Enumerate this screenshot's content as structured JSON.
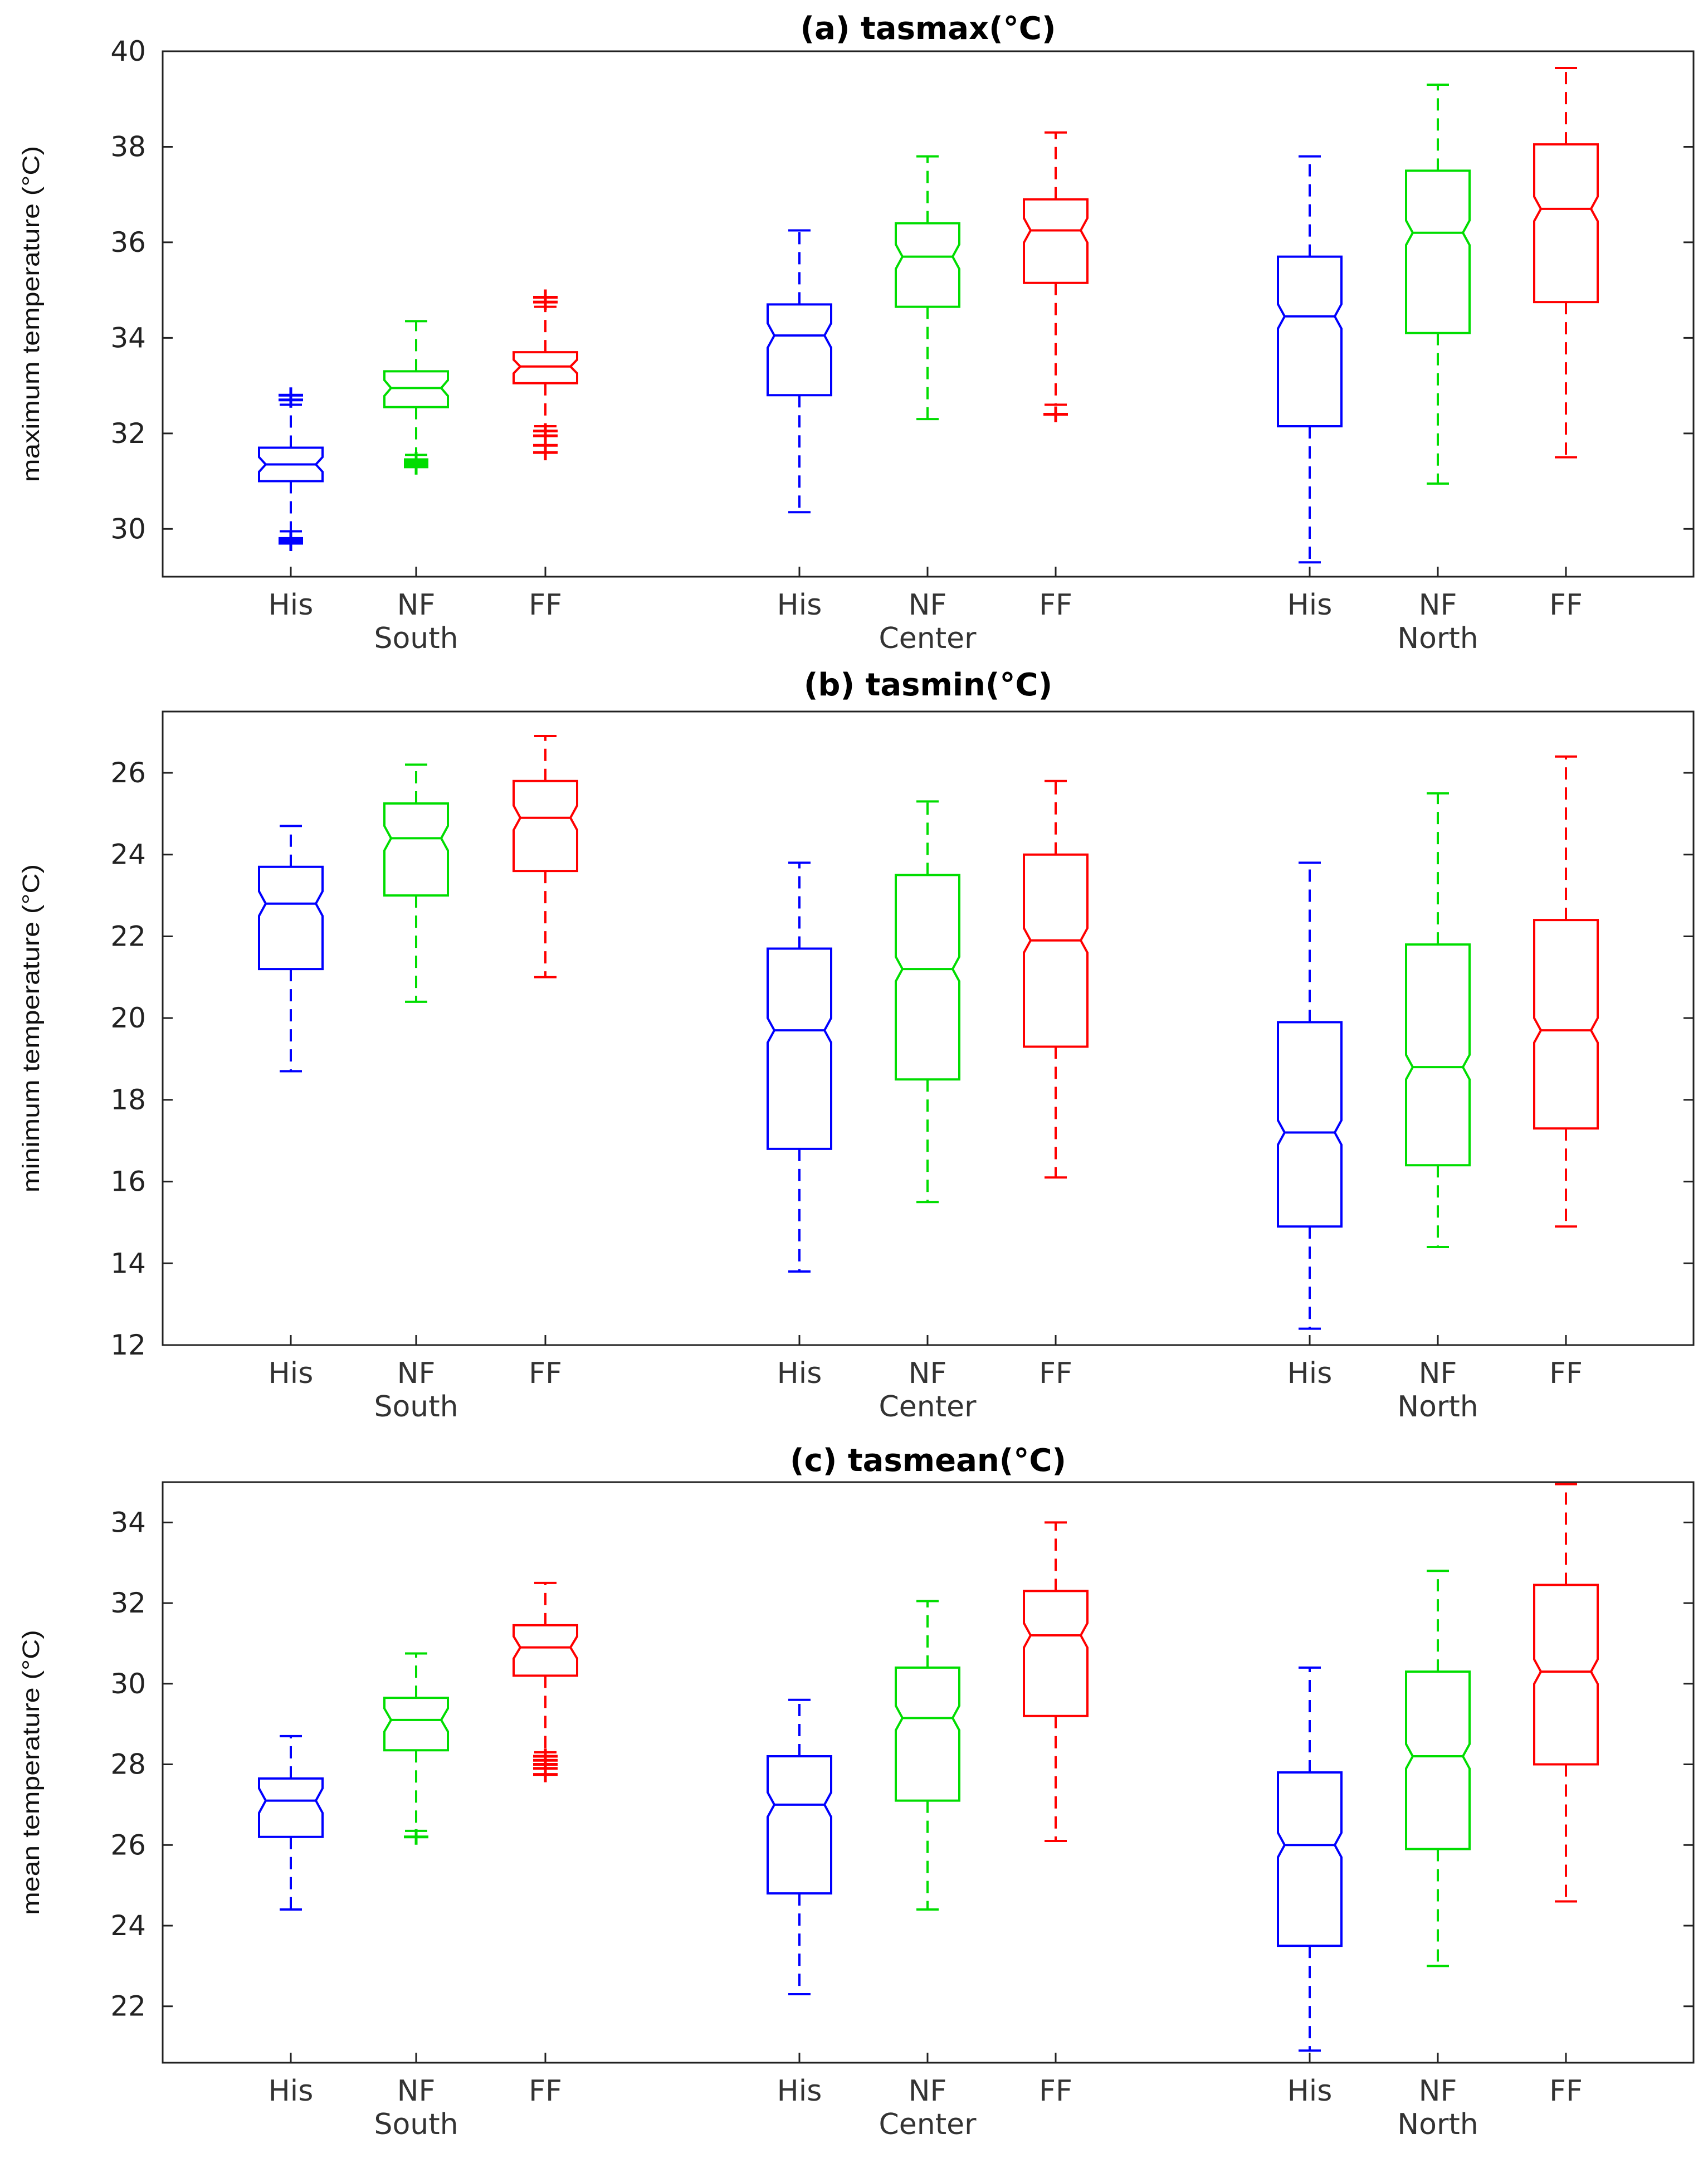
{
  "chart_data": [
    {
      "type": "box",
      "title": "(a) tasmax(°C)",
      "ylabel": "maximum temperature (°C)",
      "ylim": [
        29.0,
        40.0
      ],
      "yticks": [
        30,
        32,
        34,
        36,
        38,
        40
      ],
      "groups": [
        "South",
        "Center",
        "North"
      ],
      "categories": [
        "His",
        "NF",
        "FF"
      ],
      "series_colors": {
        "His": "#0000ff",
        "NF": "#00dd00",
        "FF": "#ff0000"
      },
      "boxes": [
        {
          "group": "South",
          "cat": "His",
          "min": 29.95,
          "q1": 31.0,
          "median": 31.35,
          "q3": 31.7,
          "max": 32.6,
          "outliers": [
            29.7,
            29.75,
            29.8,
            32.7,
            32.8
          ]
        },
        {
          "group": "South",
          "cat": "NF",
          "min": 31.55,
          "q1": 32.55,
          "median": 32.95,
          "q3": 33.3,
          "max": 34.35,
          "outliers": [
            31.3,
            31.35,
            31.4,
            31.45
          ]
        },
        {
          "group": "South",
          "cat": "FF",
          "min": 32.15,
          "q1": 33.05,
          "median": 33.4,
          "q3": 33.7,
          "max": 34.65,
          "outliers": [
            31.6,
            31.75,
            31.95,
            32.05,
            34.75,
            34.85
          ]
        },
        {
          "group": "Center",
          "cat": "His",
          "min": 30.35,
          "q1": 32.8,
          "median": 34.05,
          "q3": 34.7,
          "max": 36.25,
          "outliers": []
        },
        {
          "group": "Center",
          "cat": "NF",
          "min": 32.3,
          "q1": 34.65,
          "median": 35.7,
          "q3": 36.4,
          "max": 37.8,
          "outliers": []
        },
        {
          "group": "Center",
          "cat": "FF",
          "min": 32.6,
          "q1": 35.15,
          "median": 36.25,
          "q3": 36.9,
          "max": 38.3,
          "outliers": [
            32.4
          ]
        },
        {
          "group": "North",
          "cat": "His",
          "min": 29.3,
          "q1": 32.15,
          "median": 34.45,
          "q3": 35.7,
          "max": 37.8,
          "outliers": []
        },
        {
          "group": "North",
          "cat": "NF",
          "min": 30.95,
          "q1": 34.1,
          "median": 36.2,
          "q3": 37.5,
          "max": 39.3,
          "outliers": []
        },
        {
          "group": "North",
          "cat": "FF",
          "min": 31.5,
          "q1": 34.75,
          "median": 36.7,
          "q3": 38.05,
          "max": 39.65,
          "outliers": []
        }
      ]
    },
    {
      "type": "box",
      "title": "(b) tasmin(°C)",
      "ylabel": "minimum temperature (°C)",
      "ylim": [
        12.0,
        27.5
      ],
      "yticks": [
        12,
        14,
        16,
        18,
        20,
        22,
        24,
        26
      ],
      "groups": [
        "South",
        "Center",
        "North"
      ],
      "categories": [
        "His",
        "NF",
        "FF"
      ],
      "series_colors": {
        "His": "#0000ff",
        "NF": "#00dd00",
        "FF": "#ff0000"
      },
      "boxes": [
        {
          "group": "South",
          "cat": "His",
          "min": 18.7,
          "q1": 21.2,
          "median": 22.8,
          "q3": 23.7,
          "max": 24.7,
          "outliers": []
        },
        {
          "group": "South",
          "cat": "NF",
          "min": 20.4,
          "q1": 23.0,
          "median": 24.4,
          "q3": 25.25,
          "max": 26.2,
          "outliers": []
        },
        {
          "group": "South",
          "cat": "FF",
          "min": 21.0,
          "q1": 23.6,
          "median": 24.9,
          "q3": 25.8,
          "max": 26.9,
          "outliers": []
        },
        {
          "group": "Center",
          "cat": "His",
          "min": 13.8,
          "q1": 16.8,
          "median": 19.7,
          "q3": 21.7,
          "max": 23.8,
          "outliers": []
        },
        {
          "group": "Center",
          "cat": "NF",
          "min": 15.5,
          "q1": 18.5,
          "median": 21.2,
          "q3": 23.5,
          "max": 25.3,
          "outliers": []
        },
        {
          "group": "Center",
          "cat": "FF",
          "min": 16.1,
          "q1": 19.3,
          "median": 21.9,
          "q3": 24.0,
          "max": 25.8,
          "outliers": []
        },
        {
          "group": "North",
          "cat": "His",
          "min": 12.4,
          "q1": 14.9,
          "median": 17.2,
          "q3": 19.9,
          "max": 23.8,
          "outliers": []
        },
        {
          "group": "North",
          "cat": "NF",
          "min": 14.4,
          "q1": 16.4,
          "median": 18.8,
          "q3": 21.8,
          "max": 25.5,
          "outliers": []
        },
        {
          "group": "North",
          "cat": "FF",
          "min": 14.9,
          "q1": 17.3,
          "median": 19.7,
          "q3": 22.4,
          "max": 26.4,
          "outliers": []
        }
      ]
    },
    {
      "type": "box",
      "title": "(c) tasmean(°C)",
      "ylabel": "mean temperature (°C)",
      "ylim": [
        20.6,
        35.0
      ],
      "yticks": [
        22,
        24,
        26,
        28,
        30,
        32,
        34
      ],
      "groups": [
        "South",
        "Center",
        "North"
      ],
      "categories": [
        "His",
        "NF",
        "FF"
      ],
      "series_colors": {
        "His": "#0000ff",
        "NF": "#00dd00",
        "FF": "#ff0000"
      },
      "boxes": [
        {
          "group": "South",
          "cat": "His",
          "min": 24.4,
          "q1": 26.2,
          "median": 27.1,
          "q3": 27.65,
          "max": 28.7,
          "outliers": []
        },
        {
          "group": "South",
          "cat": "NF",
          "min": 26.35,
          "q1": 28.35,
          "median": 29.1,
          "q3": 29.65,
          "max": 30.75,
          "outliers": [
            26.2
          ]
        },
        {
          "group": "South",
          "cat": "FF",
          "min": 28.3,
          "q1": 30.2,
          "median": 30.9,
          "q3": 31.45,
          "max": 32.5,
          "outliers": [
            27.75,
            27.9,
            28.0,
            28.1,
            28.2
          ]
        },
        {
          "group": "Center",
          "cat": "His",
          "min": 22.3,
          "q1": 24.8,
          "median": 27.0,
          "q3": 28.2,
          "max": 29.6,
          "outliers": []
        },
        {
          "group": "Center",
          "cat": "NF",
          "min": 24.4,
          "q1": 27.1,
          "median": 29.15,
          "q3": 30.4,
          "max": 32.05,
          "outliers": []
        },
        {
          "group": "Center",
          "cat": "FF",
          "min": 26.1,
          "q1": 29.2,
          "median": 31.2,
          "q3": 32.3,
          "max": 34.0,
          "outliers": []
        },
        {
          "group": "North",
          "cat": "His",
          "min": 20.9,
          "q1": 23.5,
          "median": 26.0,
          "q3": 27.8,
          "max": 30.4,
          "outliers": []
        },
        {
          "group": "North",
          "cat": "NF",
          "min": 23.0,
          "q1": 25.9,
          "median": 28.2,
          "q3": 30.3,
          "max": 32.8,
          "outliers": []
        },
        {
          "group": "North",
          "cat": "FF",
          "min": 24.6,
          "q1": 28.0,
          "median": 30.3,
          "q3": 32.45,
          "max": 34.95,
          "outliers": []
        }
      ]
    }
  ]
}
